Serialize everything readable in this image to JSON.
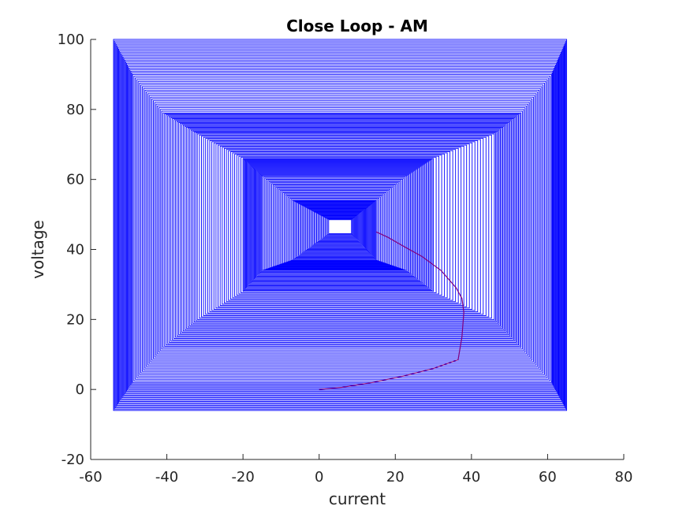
{
  "chart_data": {
    "type": "line",
    "title": "Close Loop - AM",
    "xlabel": "current",
    "ylabel": "voltage",
    "xlim": [
      -60,
      80
    ],
    "ylim": [
      -20,
      100
    ],
    "xticks": [
      "-60",
      "-40",
      "-20",
      "0",
      "20",
      "40",
      "60",
      "80"
    ],
    "yticks": [
      "-20",
      "0",
      "20",
      "40",
      "60",
      "80",
      "100"
    ],
    "grid": false,
    "legend": "none",
    "box": false,
    "series": [
      {
        "color": "#0000ff",
        "style": "nested rectangular sweep",
        "center": [
          5.5,
          46.5
        ],
        "outer_x": [
          -54,
          65
        ],
        "outer_y": [
          -6,
          100
        ],
        "inner_x": [
          -7,
          15
        ],
        "inner_y": [
          37,
          54
        ],
        "stages": [
          {
            "x": [
              -54,
              65
            ],
            "y": [
              -6,
              100
            ]
          },
          {
            "x": [
              -49,
              61
            ],
            "y": [
              2,
              90
            ]
          },
          {
            "x": [
              -41,
              53
            ],
            "y": [
              12,
              79
            ]
          },
          {
            "x": [
              -32,
              46
            ],
            "y": [
              20,
              73
            ]
          },
          {
            "x": [
              -20,
              30
            ],
            "y": [
              28,
              66
            ]
          },
          {
            "x": [
              -15,
              23
            ],
            "y": [
              34,
              61
            ]
          },
          {
            "x": [
              -7,
              15
            ],
            "y": [
              37,
              54
            ]
          }
        ]
      },
      {
        "color": "#800080",
        "style": "trajectory",
        "x": [
          0,
          6,
          14,
          22,
          30,
          36.5,
          37.5,
          38,
          37.5,
          36,
          32,
          27,
          22,
          18,
          15
        ],
        "y": [
          0,
          0.6,
          2,
          3.8,
          6,
          8.5,
          15,
          22,
          26,
          29,
          34,
          38,
          41,
          43.5,
          45
        ]
      }
    ]
  }
}
